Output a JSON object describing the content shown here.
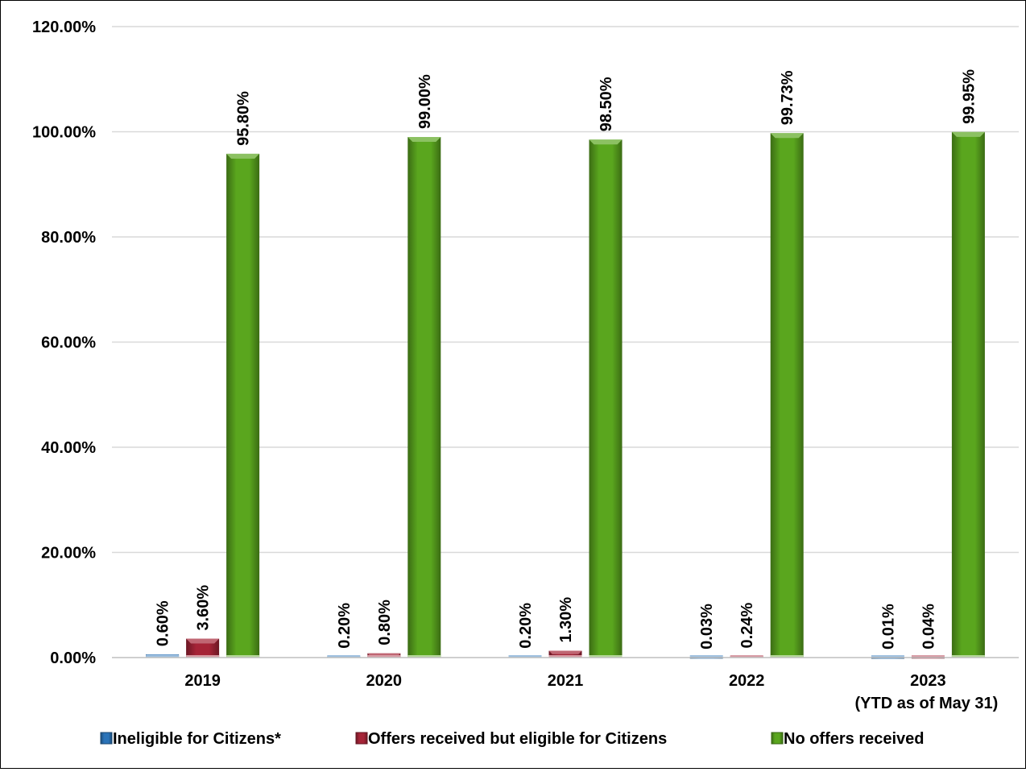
{
  "chart_data": {
    "type": "bar",
    "categories": [
      "2019",
      "2020",
      "2021",
      "2022",
      "2023"
    ],
    "category_sublabels": [
      "",
      "",
      "",
      "",
      "(YTD as of May 31)"
    ],
    "series": [
      {
        "name": "Ineligible for Citizens*",
        "color": "#2a73b8",
        "values": [
          0.6,
          0.2,
          0.2,
          0.03,
          0.01
        ],
        "labels": [
          "0.60%",
          "0.20%",
          "0.20%",
          "0.03%",
          "0.01%"
        ]
      },
      {
        "name": "Offers received but eligible for Citizens",
        "color": "#a52437",
        "values": [
          3.6,
          0.8,
          1.3,
          0.24,
          0.04
        ],
        "labels": [
          "3.60%",
          "0.80%",
          "1.30%",
          "0.24%",
          "0.04%"
        ]
      },
      {
        "name": "No offers received",
        "color": "#5aa61e",
        "values": [
          95.8,
          99.0,
          98.5,
          99.73,
          99.95
        ],
        "labels": [
          "95.80%",
          "99.00%",
          "98.50%",
          "99.73%",
          "99.95%"
        ]
      }
    ],
    "yticks": [
      "0.00%",
      "20.00%",
      "40.00%",
      "60.00%",
      "80.00%",
      "100.00%",
      "120.00%"
    ],
    "ylim": [
      0,
      120
    ],
    "grid": true,
    "legend_position": "bottom",
    "title": "",
    "xlabel": "",
    "ylabel": ""
  }
}
